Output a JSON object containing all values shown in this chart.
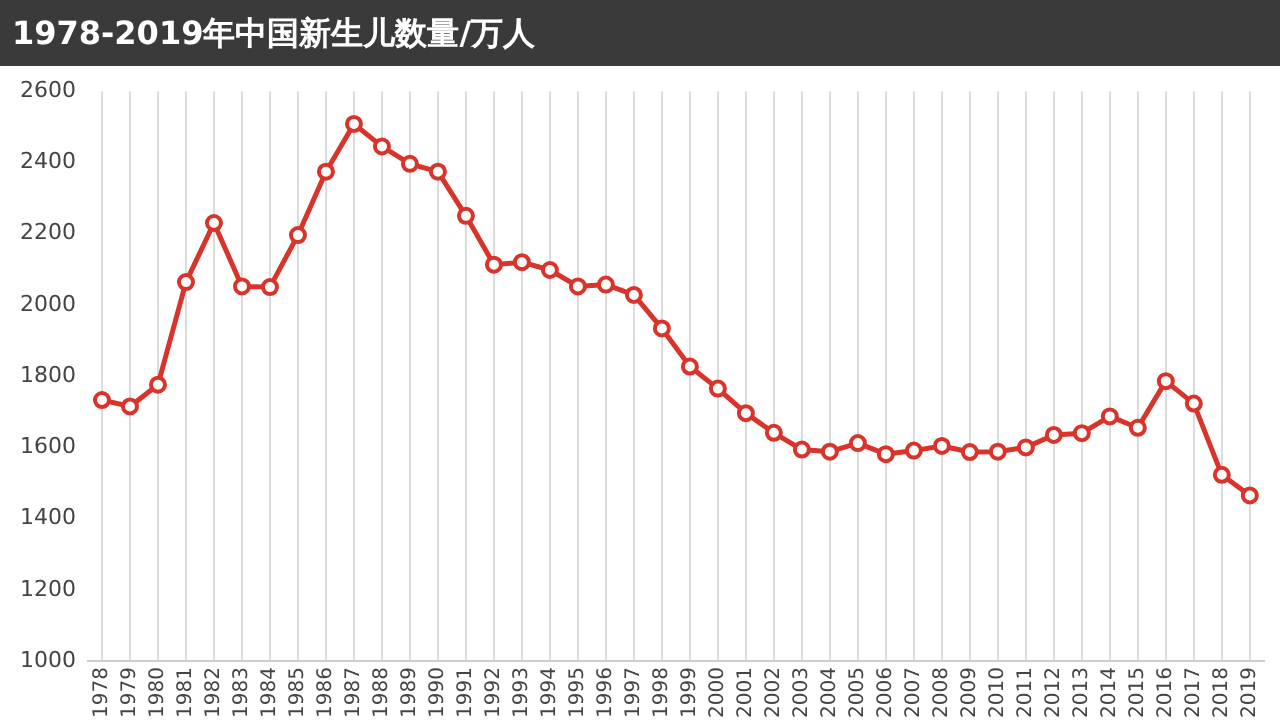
{
  "chart_data": {
    "type": "line",
    "title": "1978-2019年中国新生儿数量/万人",
    "categories": [
      "1978",
      "1979",
      "1980",
      "1981",
      "1982",
      "1983",
      "1984",
      "1985",
      "1986",
      "1987",
      "1988",
      "1989",
      "1990",
      "1991",
      "1992",
      "1993",
      "1994",
      "1995",
      "1996",
      "1997",
      "1998",
      "1999",
      "2000",
      "2001",
      "2002",
      "2003",
      "2004",
      "2005",
      "2006",
      "2007",
      "2008",
      "2009",
      "2010",
      "2011",
      "2012",
      "2013",
      "2014",
      "2015",
      "2016",
      "2017",
      "2018",
      "2019"
    ],
    "series": [
      {
        "color": "#d9342b",
        "values": [
          1733,
          1715,
          1776,
          2064,
          2230,
          2052,
          2050,
          2196,
          2374,
          2508,
          2445,
          2396,
          2374,
          2250,
          2113,
          2120,
          2098,
          2052,
          2057,
          2028,
          1934,
          1827,
          1765,
          1696,
          1641,
          1594,
          1588,
          1612,
          1581,
          1591,
          1604,
          1587,
          1588,
          1600,
          1635,
          1640,
          1687,
          1655,
          1786,
          1723,
          1523,
          1465
        ]
      }
    ],
    "ylim": [
      1000,
      2600
    ],
    "yticks": [
      1000,
      1200,
      1400,
      1600,
      1800,
      2000,
      2200,
      2400,
      2600
    ],
    "grid": "x",
    "legend": false,
    "marker": "circle",
    "line_style": "solid"
  }
}
